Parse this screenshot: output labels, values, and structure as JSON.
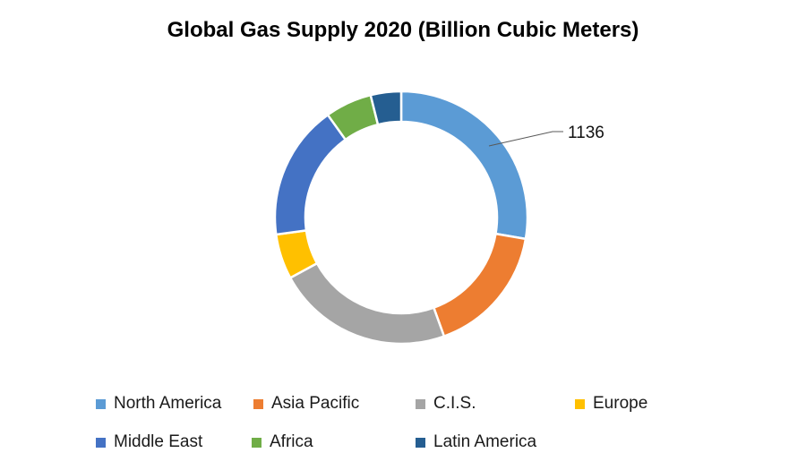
{
  "title": "Global Gas Supply 2020 (Billion Cubic Meters)",
  "chart_data": {
    "type": "pie",
    "subtype": "donut",
    "title": "Global Gas Supply 2020 (Billion Cubic Meters)",
    "unit": "Billion Cubic Meters",
    "categories": [
      "North America",
      "Asia Pacific",
      "C.I.S.",
      "Europe",
      "Middle East",
      "Africa",
      "Latin America"
    ],
    "values": [
      1136,
      688,
      926,
      237,
      708,
      245,
      160
    ],
    "colors": [
      "#5B9BD5",
      "#ED7D31",
      "#A5A5A5",
      "#FFC000",
      "#4472C4",
      "#70AD47",
      "#255E91"
    ],
    "start_angle_deg": 0,
    "hole_ratio": 0.76,
    "legend_position": "bottom",
    "data_labels": [
      {
        "category": "North America",
        "text": "1136"
      }
    ]
  },
  "legend": {
    "items": [
      {
        "label": "North America",
        "color": "#5B9BD5"
      },
      {
        "label": "Asia Pacific",
        "color": "#ED7D31"
      },
      {
        "label": "C.I.S.",
        "color": "#A5A5A5"
      },
      {
        "label": "Europe",
        "color": "#FFC000"
      },
      {
        "label": "Middle East",
        "color": "#4472C4"
      },
      {
        "label": "Africa",
        "color": "#70AD47"
      },
      {
        "label": "Latin America",
        "color": "#255E91"
      }
    ]
  }
}
